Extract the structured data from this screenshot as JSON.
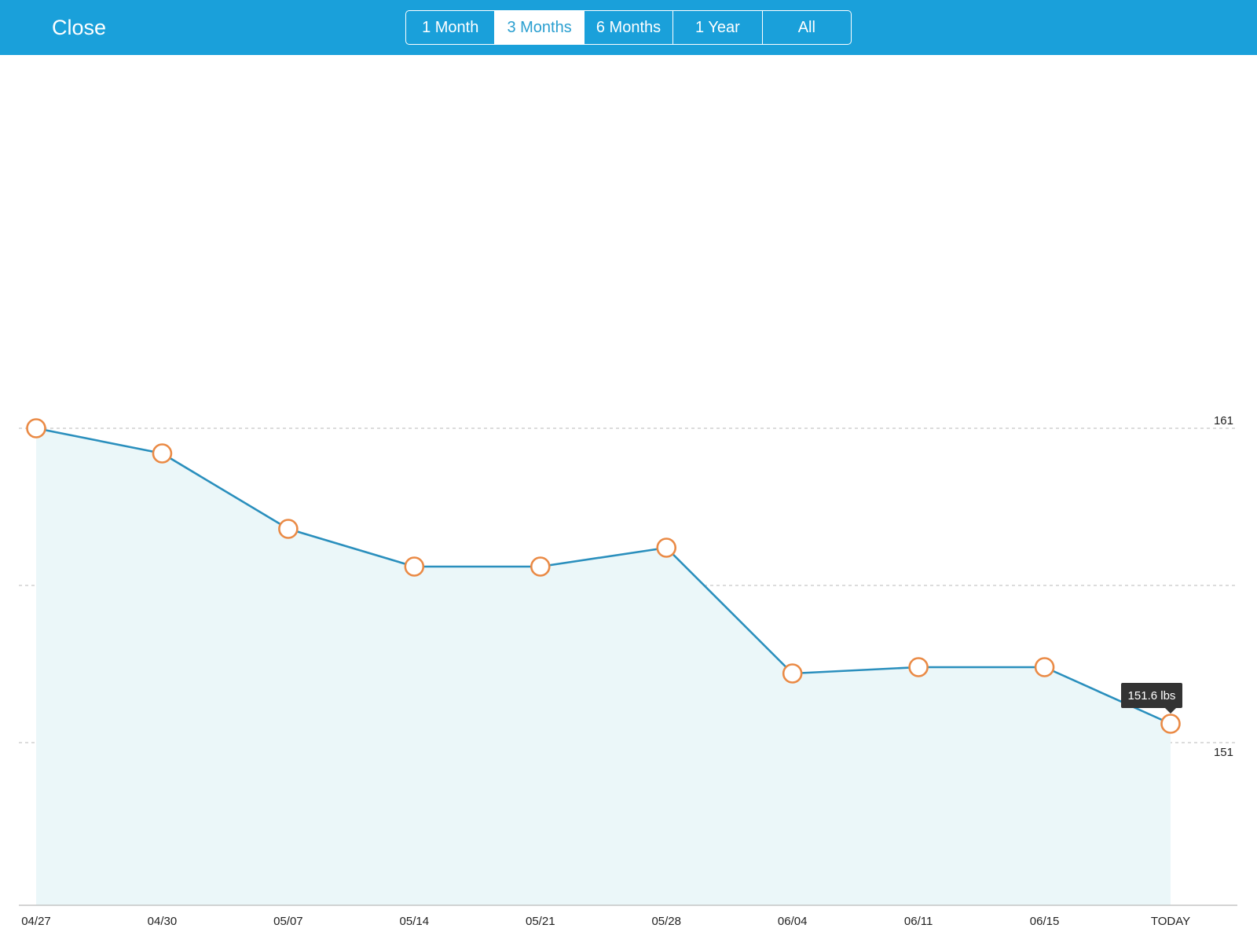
{
  "header": {
    "close_label": "Close",
    "ranges": [
      {
        "label": "1 Month",
        "active": false
      },
      {
        "label": "3 Months",
        "active": true
      },
      {
        "label": "6 Months",
        "active": false
      },
      {
        "label": "1 Year",
        "active": false
      },
      {
        "label": "All",
        "active": false
      }
    ]
  },
  "colors": {
    "header_bg": "#1aa0da",
    "line": "#2a8fbd",
    "area_fill": "#ebf7f9",
    "marker": "#ea8a45",
    "grid": "#c8c8c8",
    "tooltip_bg": "#333333"
  },
  "chart_data": {
    "type": "area",
    "title": "",
    "xlabel": "",
    "ylabel": "",
    "unit": "lbs",
    "categories": [
      "04/27",
      "04/30",
      "05/07",
      "05/14",
      "05/21",
      "05/28",
      "06/04",
      "06/11",
      "06/15",
      "TODAY"
    ],
    "values": [
      161.0,
      160.2,
      157.8,
      156.6,
      156.6,
      157.2,
      153.2,
      153.4,
      153.4,
      151.6
    ],
    "ylim": [
      146,
      166
    ],
    "gridlines": [
      161,
      156,
      151
    ],
    "y_tick_labels": [
      {
        "value": 161,
        "label": "161"
      },
      {
        "value": 151,
        "label": "151"
      }
    ],
    "tooltip": {
      "index": 9,
      "text": "151.6 lbs"
    },
    "grid": true,
    "legend": "none"
  }
}
